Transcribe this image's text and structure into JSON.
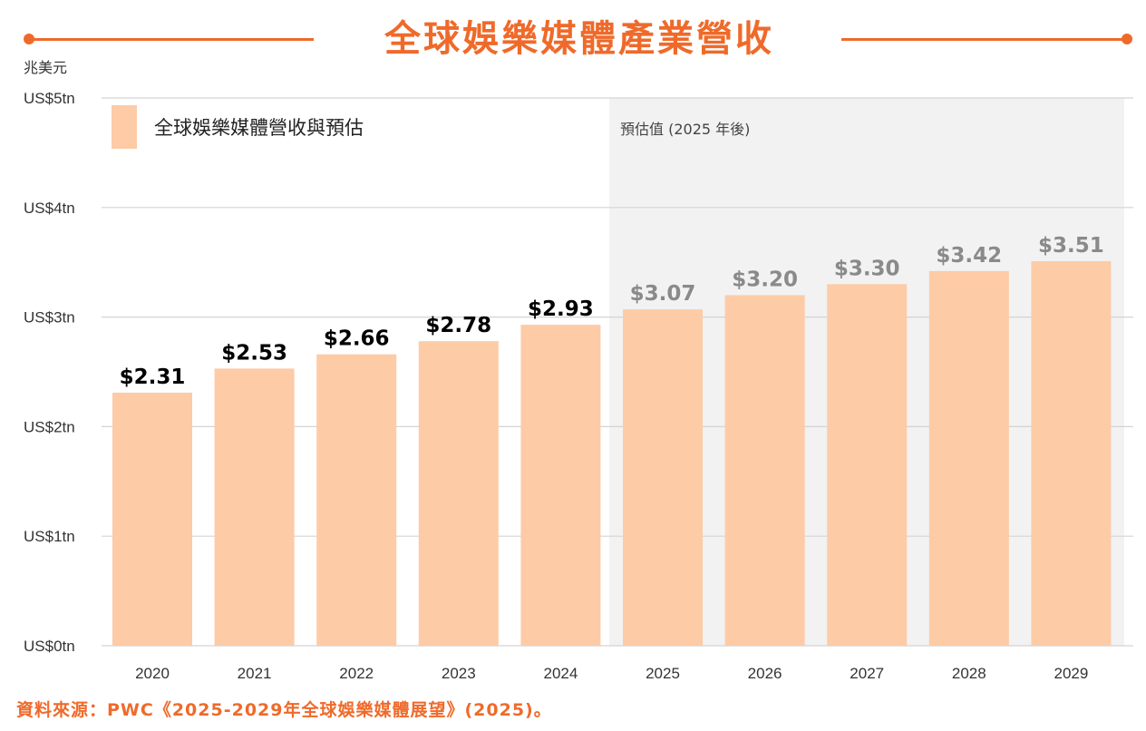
{
  "title": "全球娛樂媒體產業營收",
  "source_note": "資料來源：PWC《2025-2029年全球娛樂媒體展望》(2025)。",
  "colors": {
    "accent": "#ef6a2a",
    "bar": "#fdcba6",
    "forecast_shade": "#f2f2f2",
    "grid": "#d4d4d4",
    "actual_label": "#000000",
    "forecast_label": "#8a8a8a",
    "axis_text": "#333333"
  },
  "chart_data": {
    "type": "bar",
    "title": "全球娛樂媒體產業營收",
    "unit_label": "兆美元",
    "categories": [
      "2020",
      "2021",
      "2022",
      "2023",
      "2024",
      "2025",
      "2026",
      "2027",
      "2028",
      "2029"
    ],
    "series": [
      {
        "name": "全球娛樂媒體營收與預估",
        "values": [
          2.31,
          2.53,
          2.66,
          2.78,
          2.93,
          3.07,
          3.2,
          3.3,
          3.42,
          3.51
        ]
      }
    ],
    "data_labels": [
      "$2.31",
      "$2.53",
      "$2.66",
      "$2.78",
      "$2.93",
      "$3.07",
      "$3.20",
      "$3.30",
      "$3.42",
      "$3.51"
    ],
    "y_ticks": [
      "US$0tn",
      "US$1tn",
      "US$2tn",
      "US$3tn",
      "US$4tn",
      "US$5tn"
    ],
    "ylim": [
      0,
      5
    ],
    "forecast_start_index": 5,
    "forecast_label": "預估值 (2025 年後)",
    "legend_position": "top-left",
    "grid": true
  }
}
